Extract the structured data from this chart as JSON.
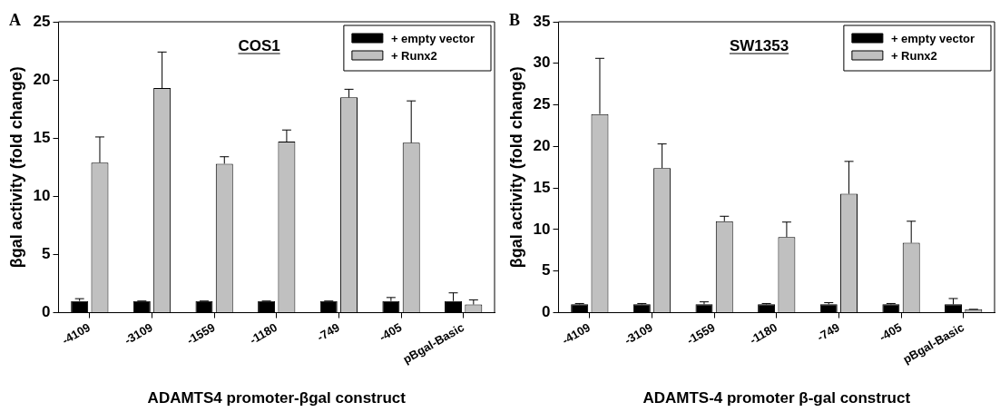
{
  "chart_data": [
    {
      "type": "bar",
      "title": "COS1",
      "xlabel": "ADAMTS4 promoter-βgal construct",
      "ylabel": "βgal activity (fold change)",
      "annotations": [
        "A"
      ],
      "categories": [
        "-4109",
        "-3109",
        "-1559",
        "-1180",
        "-749",
        "-405",
        "pBgal-Basic"
      ],
      "series": [
        {
          "name": "+ empty vector",
          "color": "#000000",
          "values": [
            1.0,
            1.0,
            1.0,
            1.0,
            1.0,
            1.0,
            1.0
          ],
          "errors": [
            [
              1.0,
              1.2
            ],
            [
              1.0,
              1.0
            ],
            [
              1.0,
              1.0
            ],
            [
              1.0,
              1.0
            ],
            [
              1.0,
              1.0
            ],
            [
              1.0,
              1.3
            ],
            [
              1.0,
              1.7
            ]
          ]
        },
        {
          "name": "+ Runx2",
          "color": "#c0c0c0",
          "values": [
            12.9,
            19.3,
            12.8,
            14.7,
            18.5,
            14.6,
            0.7
          ],
          "errors": [
            [
              12.9,
              15.1
            ],
            [
              19.3,
              22.4
            ],
            [
              12.8,
              13.4
            ],
            [
              14.7,
              15.7
            ],
            [
              18.5,
              19.2
            ],
            [
              14.6,
              18.2
            ],
            [
              0.7,
              1.1
            ]
          ]
        }
      ],
      "ylim": [
        0,
        25
      ],
      "yticks": [
        0,
        5,
        10,
        15,
        20,
        25
      ],
      "grid": false,
      "legend": "top right"
    },
    {
      "type": "bar",
      "title": "SW1353",
      "xlabel": "ADAMTS-4 promoter β-gal construct",
      "ylabel": "βgal activity (fold change)",
      "annotations": [
        "B"
      ],
      "categories": [
        "-4109",
        "-3109",
        "-1559",
        "-1180",
        "-749",
        "-405",
        "pBgal-Basic"
      ],
      "series": [
        {
          "name": "+ empty vector",
          "color": "#000000",
          "values": [
            1.0,
            1.0,
            1.0,
            1.0,
            1.0,
            1.0,
            1.0
          ],
          "errors": [
            [
              1.0,
              1.1
            ],
            [
              1.0,
              1.1
            ],
            [
              1.0,
              1.3
            ],
            [
              1.0,
              1.1
            ],
            [
              1.0,
              1.2
            ],
            [
              1.0,
              1.1
            ],
            [
              1.0,
              1.7
            ]
          ]
        },
        {
          "name": "+ Runx2",
          "color": "#c0c0c0",
          "values": [
            23.9,
            17.4,
            11.0,
            9.1,
            14.3,
            8.4,
            0.4
          ],
          "errors": [
            [
              23.9,
              30.6
            ],
            [
              17.4,
              20.3
            ],
            [
              11.0,
              11.6
            ],
            [
              9.1,
              10.9
            ],
            [
              14.3,
              18.2
            ],
            [
              8.4,
              11.0
            ],
            [
              0.4,
              0.4
            ]
          ]
        }
      ],
      "ylim": [
        0,
        35
      ],
      "yticks": [
        0,
        5,
        10,
        15,
        20,
        25,
        30,
        35
      ],
      "grid": false,
      "legend": "top right"
    }
  ]
}
